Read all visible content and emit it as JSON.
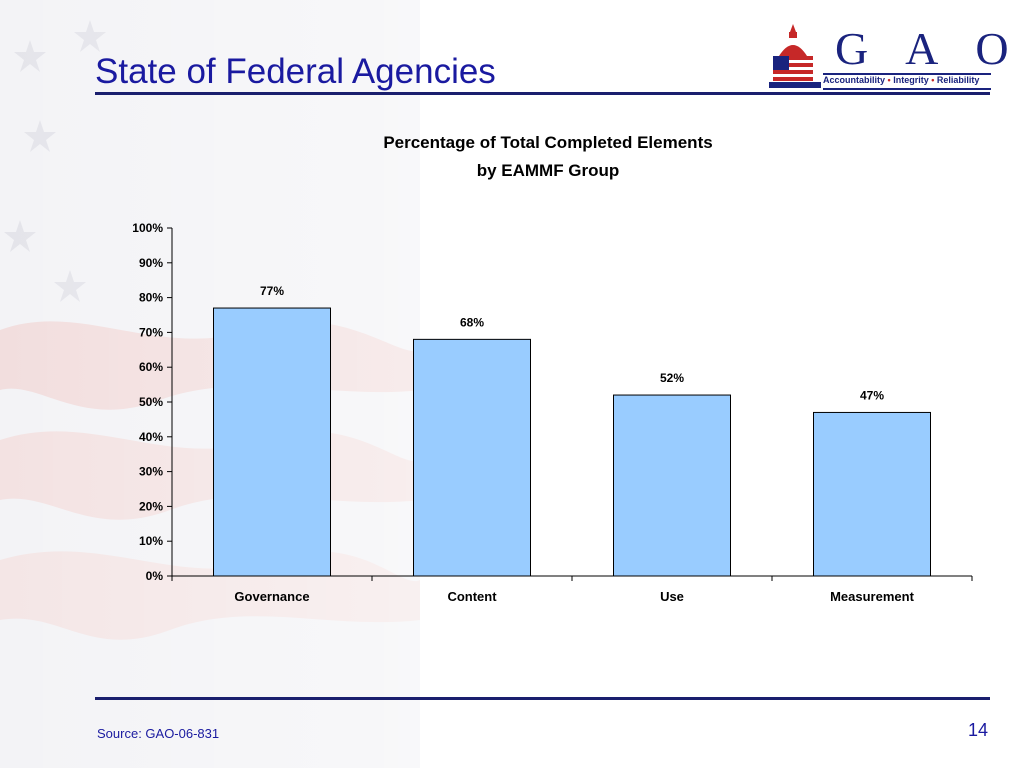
{
  "slide": {
    "title": "State of Federal Agencies",
    "source": "Source: GAO-06-831",
    "page_number": "14"
  },
  "logo": {
    "letters": "G A O",
    "tagline": [
      "Accountability",
      "Integrity",
      "Reliability"
    ],
    "separator": "•"
  },
  "colors": {
    "title": "#1a1aa0",
    "rule": "#1a1f6e",
    "bar_fill": "#99ccff",
    "bar_stroke": "#000000"
  },
  "chart_data": {
    "type": "bar",
    "title": [
      "Percentage of Total Completed Elements",
      "by EAMMF Group"
    ],
    "categories": [
      "Governance",
      "Content",
      "Use",
      "Measurement"
    ],
    "values": [
      77,
      68,
      52,
      47
    ],
    "data_labels": [
      "77%",
      "68%",
      "52%",
      "47%"
    ],
    "ylim": [
      0,
      100
    ],
    "yticks": [
      "0%",
      "10%",
      "20%",
      "30%",
      "40%",
      "50%",
      "60%",
      "70%",
      "80%",
      "90%",
      "100%"
    ],
    "xlabel": "",
    "ylabel": "",
    "grid": false,
    "legend": "none"
  }
}
